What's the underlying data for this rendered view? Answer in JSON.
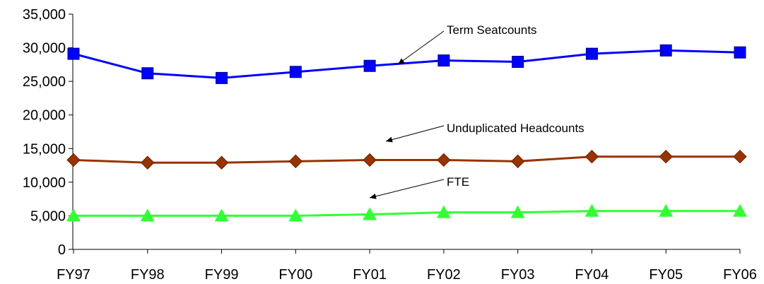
{
  "chart_data": {
    "type": "line",
    "title": "",
    "xlabel": "",
    "ylabel": "",
    "categories": [
      "FY97",
      "FY98",
      "FY99",
      "FY00",
      "FY01",
      "FY02",
      "FY03",
      "FY04",
      "FY05",
      "FY06"
    ],
    "ylim": [
      0,
      35000
    ],
    "yticks": [
      0,
      5000,
      10000,
      15000,
      20000,
      25000,
      30000,
      35000
    ],
    "ytick_labels": [
      "0",
      "5,000",
      "10,000",
      "15,000",
      "20,000",
      "25,000",
      "30,000",
      "35,000"
    ],
    "grid": false,
    "legend": "none",
    "series": [
      {
        "name": "Term Seatcounts",
        "color": "#0000ff",
        "marker": "square",
        "values": [
          29100,
          26200,
          25500,
          26400,
          27300,
          28100,
          27900,
          29100,
          29600,
          29300
        ]
      },
      {
        "name": "Unduplicated Headcounts",
        "color": "#993300",
        "marker": "diamond",
        "values": [
          13300,
          12900,
          12900,
          13100,
          13300,
          13300,
          13100,
          13800,
          13800,
          13800
        ]
      },
      {
        "name": "FTE",
        "color": "#33ff33",
        "marker": "triangle",
        "values": [
          5000,
          5000,
          5000,
          5000,
          5200,
          5500,
          5500,
          5700,
          5700,
          5700
        ]
      }
    ],
    "annotations": [
      {
        "text": "Term Seatcounts",
        "series": 0
      },
      {
        "text": "Unduplicated Headcounts",
        "series": 1
      },
      {
        "text": "FTE",
        "series": 2
      }
    ]
  }
}
